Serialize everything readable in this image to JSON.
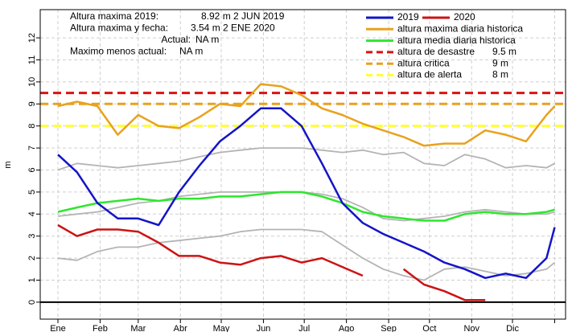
{
  "chart_data": {
    "type": "line",
    "ylabel": "m",
    "x": [
      1,
      15,
      30,
      45,
      60,
      75,
      90,
      105,
      120,
      135,
      150,
      165,
      180,
      195,
      210,
      225,
      240,
      255,
      270,
      285,
      300,
      315,
      330,
      345,
      360,
      366
    ],
    "xlim": [
      -12,
      374
    ],
    "xticks": [
      {
        "value": 1,
        "label": "Ene"
      },
      {
        "value": 32,
        "label": "Feb"
      },
      {
        "value": 60,
        "label": "Mar"
      },
      {
        "value": 91,
        "label": "Abr"
      },
      {
        "value": 121,
        "label": "May"
      },
      {
        "value": 152,
        "label": "Jun"
      },
      {
        "value": 182,
        "label": "Jul"
      },
      {
        "value": 213,
        "label": "Ago"
      },
      {
        "value": 244,
        "label": "Sep"
      },
      {
        "value": 274,
        "label": "Oct"
      },
      {
        "value": 305,
        "label": "Nov"
      },
      {
        "value": 335,
        "label": "Dic"
      },
      {
        "value": 366,
        "label": null
      }
    ],
    "ylim": [
      -0.77,
      13.28
    ],
    "yticks": [
      0,
      1,
      2,
      3,
      4,
      5,
      6,
      7,
      8,
      9,
      10,
      11,
      12
    ],
    "grid": true,
    "hline": 0,
    "series": [
      {
        "color": "#b4b4b4",
        "values": [
          6.0,
          6.3,
          6.2,
          6.1,
          6.2,
          6.3,
          6.4,
          6.6,
          6.8,
          6.9,
          7.0,
          7.0,
          7.0,
          6.9,
          6.8,
          6.9,
          6.7,
          6.8,
          6.3,
          6.2,
          6.7,
          6.5,
          6.1,
          6.2,
          6.1,
          6.3
        ]
      },
      {
        "color": "#b4b4b4",
        "values": [
          3.9,
          4.0,
          4.1,
          4.3,
          4.5,
          4.6,
          4.8,
          4.9,
          5.0,
          5.0,
          5.0,
          5.0,
          5.0,
          4.9,
          4.7,
          4.3,
          3.8,
          3.7,
          3.8,
          3.9,
          4.1,
          4.2,
          4.1,
          4.0,
          4.0,
          4.1
        ]
      },
      {
        "color": "#b4b4b4",
        "values": [
          2.0,
          1.9,
          2.3,
          2.5,
          2.5,
          2.7,
          2.8,
          2.9,
          3.0,
          3.2,
          3.3,
          3.3,
          3.3,
          3.2,
          2.6,
          2.0,
          1.5,
          1.2,
          1.0,
          1.5,
          1.6,
          1.4,
          1.2,
          1.3,
          1.5,
          1.8
        ]
      },
      {
        "name": "altura maxima diaria historica",
        "color": "#e8a21e",
        "values": [
          8.9,
          9.1,
          8.9,
          7.6,
          8.5,
          8.0,
          7.9,
          8.4,
          9.0,
          8.9,
          9.9,
          9.8,
          9.4,
          8.8,
          8.5,
          8.1,
          7.8,
          7.5,
          7.1,
          7.2,
          7.2,
          7.8,
          7.6,
          7.3,
          8.5,
          8.9
        ]
      },
      {
        "name": "altura media diaria historica",
        "color": "#2ee62e",
        "values": [
          4.1,
          4.3,
          4.5,
          4.6,
          4.7,
          4.6,
          4.7,
          4.7,
          4.8,
          4.8,
          4.9,
          5.0,
          5.0,
          4.8,
          4.5,
          4.1,
          3.9,
          3.8,
          3.7,
          3.7,
          4.0,
          4.1,
          4.0,
          4.0,
          4.1,
          4.2
        ]
      },
      {
        "name": "2019",
        "color": "#1414c8",
        "values": [
          6.7,
          5.9,
          4.5,
          3.8,
          3.8,
          3.5,
          5.0,
          6.2,
          7.3,
          8.0,
          8.8,
          8.8,
          8.0,
          6.3,
          4.5,
          3.6,
          3.1,
          2.7,
          2.3,
          1.8,
          1.5,
          1.1,
          1.3,
          1.1,
          2.0,
          3.4
        ]
      },
      {
        "name": "2020",
        "color": "#cc1414",
        "values": [
          3.5,
          3.0,
          3.3,
          3.3,
          3.2,
          2.7,
          2.1,
          2.1,
          1.8,
          1.7,
          2.0,
          2.1,
          1.8,
          2.0,
          1.6,
          1.2,
          null,
          1.5,
          0.8,
          0.5,
          0.1,
          0.1,
          null,
          null,
          null,
          null
        ]
      }
    ],
    "reference_lines": [
      {
        "name": "altura de desastre",
        "value": 9.5,
        "value_label": "9.5 m",
        "color": "#dd1111"
      },
      {
        "name": "altura critica",
        "value": 9,
        "value_label": "9 m",
        "color": "#e8a21e"
      },
      {
        "name": "altura de alerta",
        "value": 8,
        "value_label": "8 m",
        "color": "#ffff33"
      }
    ],
    "annotations": [
      {
        "label": "Altura maxima 2019:",
        "text": "8.92 m 2 JUN 2019"
      },
      {
        "label": "Altura maxima y fecha:",
        "text": "3.54 m 2 ENE 2020"
      },
      {
        "label": "Actual:",
        "text": "NA m"
      },
      {
        "label": "Maximo menos actual:",
        "text": "NA m"
      }
    ]
  }
}
